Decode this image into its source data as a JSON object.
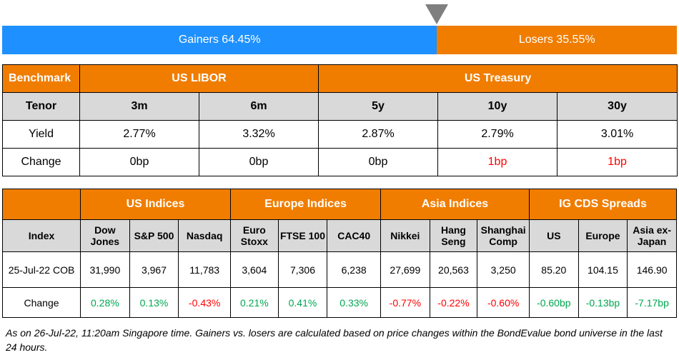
{
  "breadth": {
    "gainers_label": "Gainers 64.45%",
    "losers_label": "Losers 35.55%",
    "gainers_pct": 64.45,
    "losers_pct": 35.55,
    "gainers_color": "#1e90ff",
    "losers_color": "#f07d00"
  },
  "rates": {
    "benchmark_label": "Benchmark",
    "libor_label": "US LIBOR",
    "treasury_label": "US Treasury",
    "tenor_label": "Tenor",
    "tenors": [
      "3m",
      "6m",
      "5y",
      "10y",
      "30y"
    ],
    "yield_label": "Yield",
    "yields": [
      "2.77%",
      "3.32%",
      "2.87%",
      "2.79%",
      "3.01%"
    ],
    "change_label": "Change",
    "changes": [
      "0bp",
      "0bp",
      "0bp",
      "1bp",
      "1bp"
    ]
  },
  "indices": {
    "groups": [
      "US Indices",
      "Europe Indices",
      "Asia Indices",
      "IG CDS Spreads"
    ],
    "index_label": "Index",
    "names": [
      {
        "line1": "Dow",
        "line2": "Jones"
      },
      {
        "line1": "S&P 500",
        "line2": ""
      },
      {
        "line1": "Nasdaq",
        "line2": ""
      },
      {
        "line1": "Euro",
        "line2": "Stoxx"
      },
      {
        "line1": "FTSE 100",
        "line2": ""
      },
      {
        "line1": "CAC40",
        "line2": ""
      },
      {
        "line1": "Nikkei",
        "line2": ""
      },
      {
        "line1": "Hang",
        "line2": "Seng"
      },
      {
        "line1": "Shanghai",
        "line2": "Comp"
      },
      {
        "line1": "US",
        "line2": ""
      },
      {
        "line1": "Europe",
        "line2": ""
      },
      {
        "line1": "Asia ex-",
        "line2": "Japan"
      }
    ],
    "date_label": "25-Jul-22 COB",
    "values": [
      "31,990",
      "3,967",
      "11,783",
      "3,604",
      "7,306",
      "6,238",
      "27,699",
      "20,563",
      "3,250",
      "85.20",
      "104.15",
      "146.90"
    ],
    "change_label": "Change",
    "changes": [
      "0.28%",
      "0.13%",
      "-0.43%",
      "0.21%",
      "0.41%",
      "0.33%",
      "-0.77%",
      "-0.22%",
      "-0.60%",
      "-0.60bp",
      "-0.13bp",
      "-7.17bp"
    ]
  },
  "footnote": "As on 26-Jul-22, 11:20am Singapore time. Gainers vs. losers are calculated based on price changes within the BondEvalue bond universe in the last 24 hours."
}
